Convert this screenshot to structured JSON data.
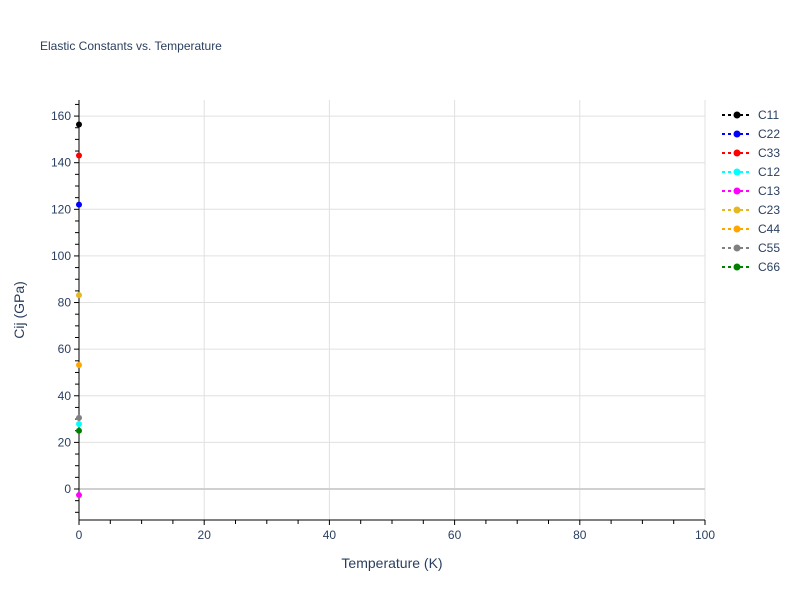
{
  "chart_data": {
    "type": "scatter",
    "mode": "lines+markers",
    "title": "Elastic Constants vs. Temperature",
    "xlabel": "Temperature (K)",
    "ylabel": "Cij (GPa)",
    "xlim": [
      0,
      100
    ],
    "ylim": [
      -13.3,
      166.9
    ],
    "xticks": [
      0,
      20,
      40,
      60,
      80,
      100
    ],
    "yticks": [
      0,
      20,
      40,
      60,
      80,
      100,
      120,
      140,
      160
    ],
    "grid": true,
    "legend_position": "right",
    "series": [
      {
        "name": "C11",
        "color": "#000000",
        "x": [
          0
        ],
        "y": [
          156.4
        ]
      },
      {
        "name": "C22",
        "color": "#0000ff",
        "x": [
          0
        ],
        "y": [
          122.0
        ]
      },
      {
        "name": "C33",
        "color": "#ff0000",
        "x": [
          0
        ],
        "y": [
          143.1
        ]
      },
      {
        "name": "C12",
        "color": "#00ffff",
        "x": [
          0
        ],
        "y": [
          27.9
        ]
      },
      {
        "name": "C13",
        "color": "#ff00ff",
        "x": [
          0
        ],
        "y": [
          -2.6
        ]
      },
      {
        "name": "C23",
        "color": "#e6b820",
        "x": [
          0
        ],
        "y": [
          83.2
        ]
      },
      {
        "name": "C44",
        "color": "#ffa500",
        "x": [
          0
        ],
        "y": [
          53.2
        ]
      },
      {
        "name": "C55",
        "color": "#808080",
        "x": [
          0
        ],
        "y": [
          30.5
        ]
      },
      {
        "name": "C66",
        "color": "#008000",
        "x": [
          0
        ],
        "y": [
          25.0
        ]
      }
    ]
  }
}
